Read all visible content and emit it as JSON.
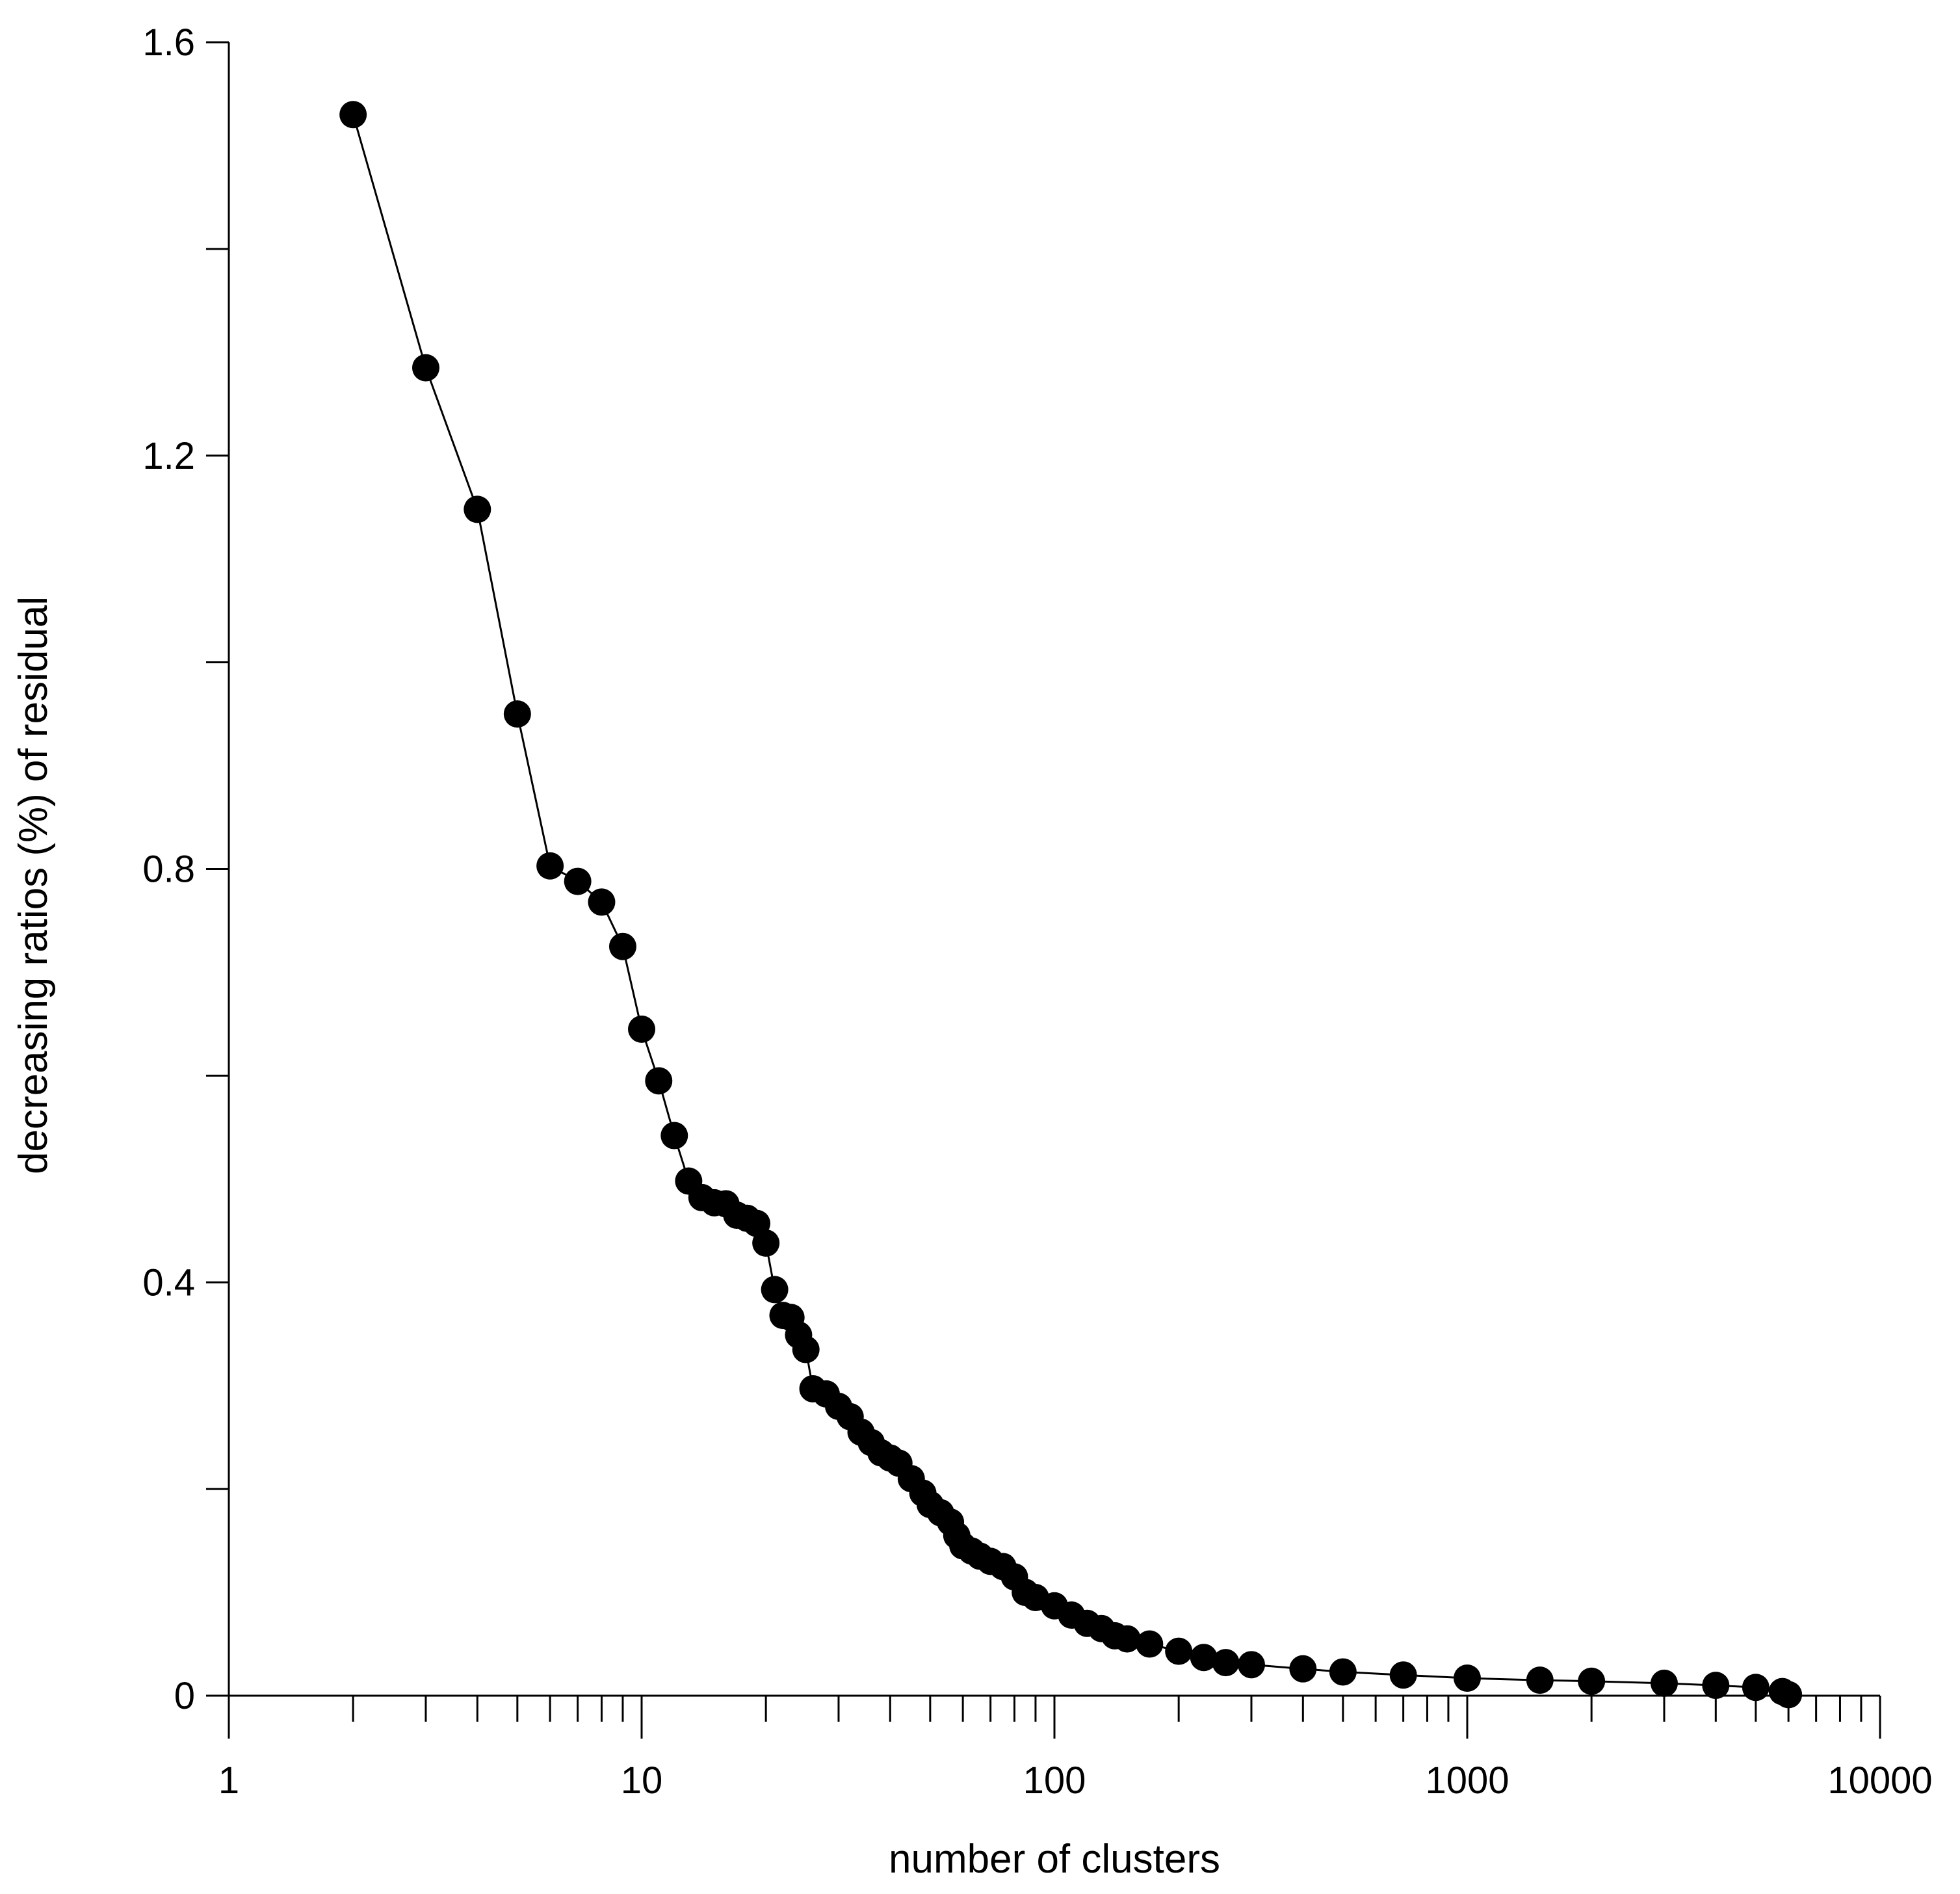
{
  "chart_data": {
    "type": "scatter",
    "title": "",
    "xlabel": "number of clusters",
    "ylabel": "decreasing ratios (%) of residual",
    "x_scale": "log",
    "xlim": [
      1,
      10000
    ],
    "ylim": [
      0,
      1.6
    ],
    "x_ticks": [
      1,
      10,
      100,
      1000,
      10000
    ],
    "x_tick_labels": [
      "1",
      "10",
      "100",
      "1000",
      "10000"
    ],
    "y_ticks": [
      0,
      0.4,
      0.8,
      1.2,
      1.6
    ],
    "y_tick_labels": [
      "0",
      "0.4",
      "0.8",
      "1.2",
      "1.6"
    ],
    "grid": false,
    "legend": "none",
    "color": "#000000",
    "series": [
      {
        "x": [
          2,
          3,
          4,
          5,
          6,
          7,
          8,
          9,
          10,
          11,
          12,
          13,
          14,
          15,
          16,
          17,
          18,
          19,
          20,
          21,
          22,
          23,
          24,
          25,
          26,
          28,
          30,
          32,
          34,
          36,
          38,
          40,
          42,
          45,
          48,
          50,
          53,
          56,
          58,
          60,
          63,
          66,
          70,
          75,
          80,
          85,
          90,
          100,
          110,
          120,
          130,
          140,
          150,
          170,
          200,
          230,
          260,
          300,
          400,
          500,
          700,
          1000,
          1500,
          2000,
          3000,
          4000,
          5000,
          5800,
          6000
        ],
        "y": [
          1.53,
          1.285,
          1.148,
          0.95,
          0.803,
          0.788,
          0.768,
          0.725,
          0.645,
          0.595,
          0.542,
          0.498,
          0.482,
          0.477,
          0.476,
          0.465,
          0.462,
          0.457,
          0.438,
          0.393,
          0.368,
          0.366,
          0.349,
          0.335,
          0.297,
          0.292,
          0.28,
          0.27,
          0.255,
          0.245,
          0.235,
          0.23,
          0.225,
          0.21,
          0.196,
          0.185,
          0.177,
          0.168,
          0.155,
          0.145,
          0.14,
          0.135,
          0.13,
          0.125,
          0.115,
          0.1,
          0.095,
          0.087,
          0.078,
          0.07,
          0.065,
          0.058,
          0.055,
          0.05,
          0.043,
          0.037,
          0.032,
          0.03,
          0.026,
          0.023,
          0.02,
          0.017,
          0.015,
          0.014,
          0.012,
          0.01,
          0.008,
          0.004,
          0.001
        ]
      }
    ]
  }
}
